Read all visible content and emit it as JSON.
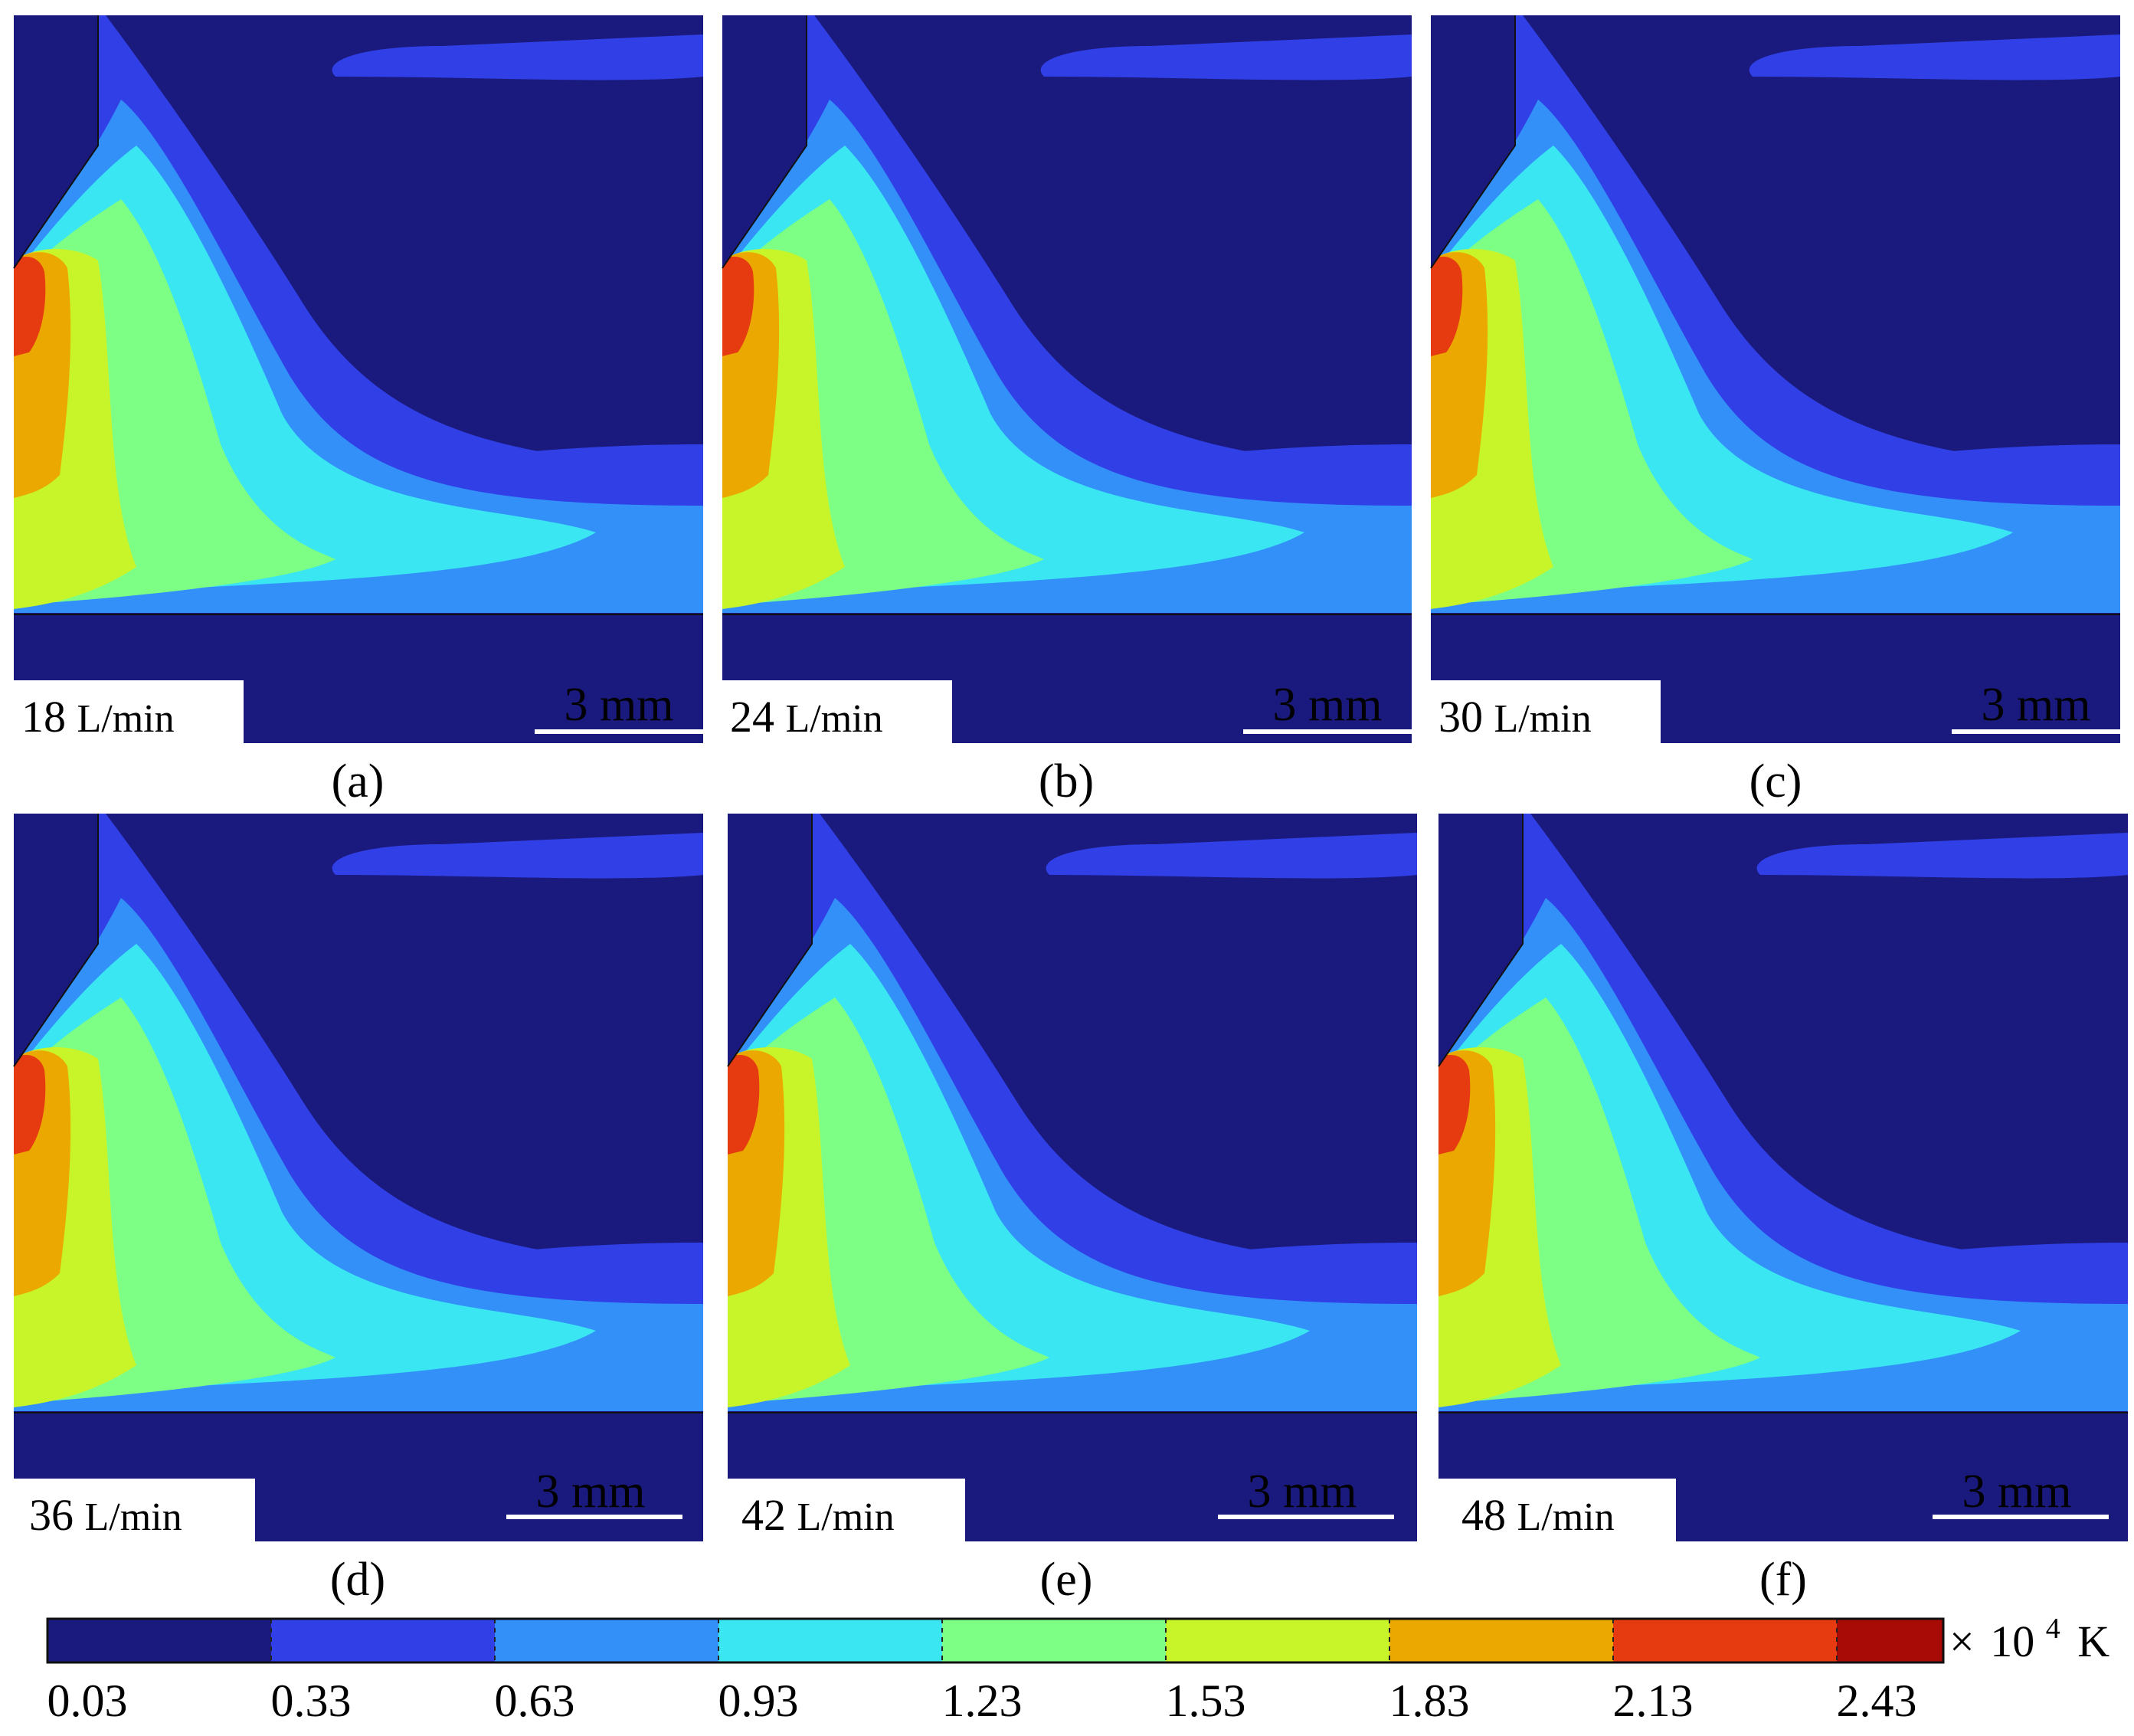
{
  "panels": [
    {
      "id": "a",
      "flow_value": "18",
      "flow_unit": "L/min",
      "scale_label": "3 mm",
      "caption": "(a)"
    },
    {
      "id": "b",
      "flow_value": "24",
      "flow_unit": "L/min",
      "scale_label": "3 mm",
      "caption": "(b)"
    },
    {
      "id": "c",
      "flow_value": "30",
      "flow_unit": "L/min",
      "scale_label": "3 mm",
      "caption": "(c)"
    },
    {
      "id": "d",
      "flow_value": "36",
      "flow_unit": "L/min",
      "scale_label": "3 mm",
      "caption": "(d)"
    },
    {
      "id": "e",
      "flow_value": "42",
      "flow_unit": "L/min",
      "scale_label": "3 mm",
      "caption": "(e)"
    },
    {
      "id": "f",
      "flow_value": "48",
      "flow_unit": "L/min",
      "scale_label": "3 mm",
      "caption": "(f)"
    }
  ],
  "colorbar": {
    "ticks": [
      "0.03",
      "0.33",
      "0.63",
      "0.93",
      "1.23",
      "1.53",
      "1.83",
      "2.13",
      "2.43"
    ],
    "unit_prefix": "×",
    "unit_base": "10",
    "unit_exp": "4",
    "unit_suffix": "K",
    "colors": [
      "#1a1a7e",
      "#3040e6",
      "#3390f8",
      "#3ae6f2",
      "#7dff85",
      "#c8f52a",
      "#eba800",
      "#e63a10",
      "#a80a06"
    ]
  }
}
